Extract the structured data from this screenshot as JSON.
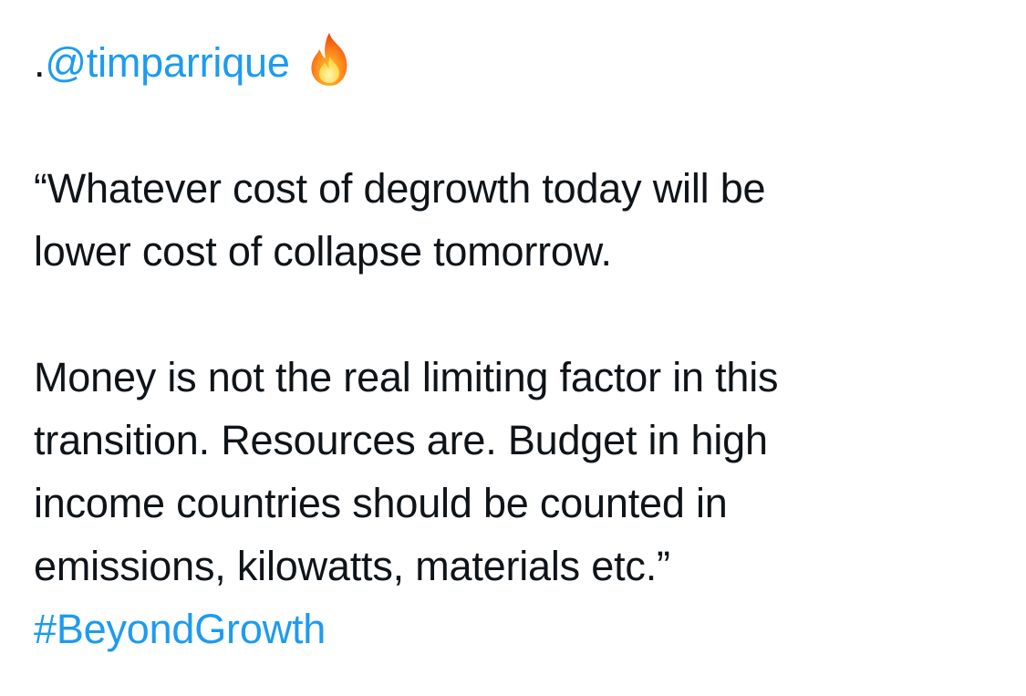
{
  "tweet": {
    "mention_prefix": ".",
    "mention": "@timparrique",
    "emoji_icon": "fire-icon",
    "quote_line1": "“Whatever cost of degrowth today will be",
    "quote_line2": "lower cost of collapse tomorrow.",
    "para2_line1": "Money is not the real limiting factor in this",
    "para2_line2": "transition. Resources are. Budget in high",
    "para2_line3": "income countries should be counted in",
    "para2_line4": "emissions, kilowatts, materials etc.”",
    "hashtag": "#BeyondGrowth"
  },
  "colors": {
    "text": "#0f1419",
    "link": "#1d9bf0",
    "background": "#ffffff"
  }
}
